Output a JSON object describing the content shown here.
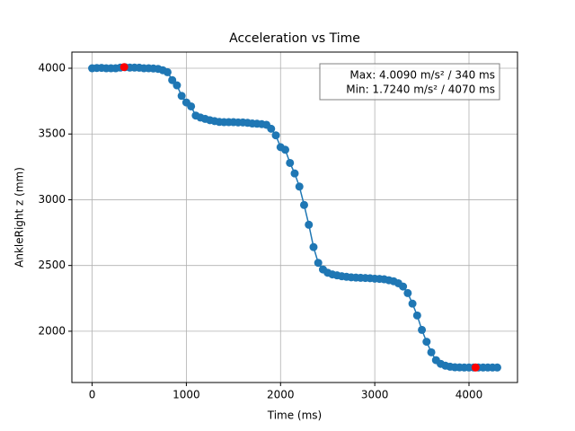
{
  "chart_data": {
    "type": "line",
    "title": "Acceleration vs Time",
    "xlabel": "Time (ms)",
    "ylabel": "AnkleRight z (mm)",
    "annotation": [
      "Max: 4.0090 m/s² / 340 ms",
      "Min: 1.7240 m/s² / 4070 ms"
    ],
    "x": [
      0,
      50,
      100,
      150,
      200,
      250,
      300,
      350,
      400,
      450,
      500,
      550,
      600,
      650,
      700,
      750,
      800,
      850,
      900,
      950,
      1000,
      1050,
      1100,
      1150,
      1200,
      1250,
      1300,
      1350,
      1400,
      1450,
      1500,
      1550,
      1600,
      1650,
      1700,
      1750,
      1800,
      1850,
      1900,
      1950,
      2000,
      2050,
      2100,
      2150,
      2200,
      2250,
      2300,
      2350,
      2400,
      2450,
      2500,
      2550,
      2600,
      2650,
      2700,
      2750,
      2800,
      2850,
      2900,
      2950,
      3000,
      3050,
      3100,
      3150,
      3200,
      3250,
      3300,
      3350,
      3400,
      3450,
      3500,
      3550,
      3600,
      3650,
      3700,
      3750,
      3800,
      3850,
      3900,
      3950,
      4000,
      4050,
      4100,
      4150,
      4200,
      4250,
      4300
    ],
    "series": [
      {
        "color": "#1f77b4",
        "values": [
          4000,
          4002,
          4003,
          4000,
          4000,
          4000,
          4005,
          4008,
          4005,
          4005,
          4004,
          4000,
          4000,
          3998,
          3995,
          3985,
          3970,
          3910,
          3870,
          3790,
          3740,
          3710,
          3640,
          3625,
          3615,
          3605,
          3598,
          3592,
          3590,
          3590,
          3590,
          3588,
          3588,
          3585,
          3580,
          3578,
          3575,
          3570,
          3540,
          3490,
          3400,
          3380,
          3280,
          3200,
          3100,
          2960,
          2810,
          2640,
          2520,
          2470,
          2445,
          2432,
          2425,
          2418,
          2414,
          2410,
          2408,
          2406,
          2405,
          2403,
          2400,
          2398,
          2395,
          2388,
          2380,
          2365,
          2340,
          2290,
          2210,
          2120,
          2010,
          1920,
          1840,
          1780,
          1752,
          1738,
          1730,
          1726,
          1725,
          1724,
          1724,
          1724,
          1724,
          1724,
          1724,
          1724,
          1724
        ]
      }
    ],
    "highlights": [
      {
        "x": 340,
        "y": 4009,
        "color": "red"
      },
      {
        "x": 4070,
        "y": 1724,
        "color": "red"
      }
    ],
    "xlim": [
      -215,
      4515
    ],
    "ylim": [
      1610,
      4123
    ],
    "xticks": [
      0,
      1000,
      2000,
      3000,
      4000
    ],
    "yticks": [
      2000,
      2500,
      3000,
      3500,
      4000
    ],
    "grid": true
  }
}
